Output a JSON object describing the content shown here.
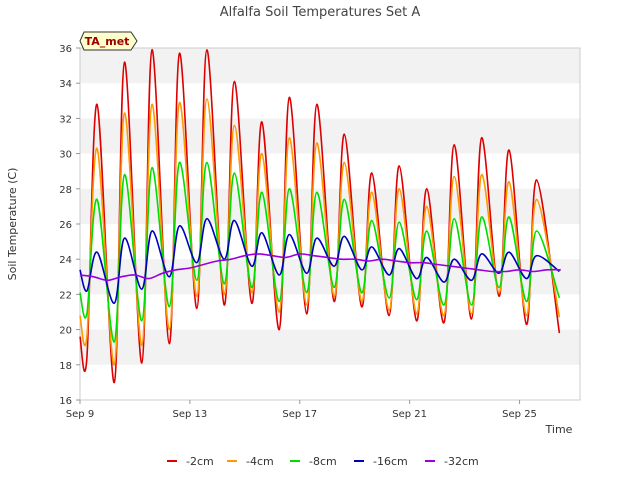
{
  "chart_data": {
    "type": "line",
    "title": "Alfalfa Soil Temperatures Set A",
    "badge": "TA_met",
    "xlabel": "Time",
    "ylabel": "Soil Temperature (C)",
    "ylim": [
      16,
      36
    ],
    "y_ticks": [
      16,
      18,
      20,
      22,
      24,
      26,
      28,
      30,
      32,
      34,
      36
    ],
    "x_ticks": [
      {
        "label": "Sep 9",
        "x": 0
      },
      {
        "label": "Sep 13",
        "x": 4
      },
      {
        "label": "Sep 17",
        "x": 8
      },
      {
        "label": "Sep 21",
        "x": 12
      },
      {
        "label": "Sep 25",
        "x": 16
      }
    ],
    "xlim_days_from_sep9": [
      0,
      18.2
    ],
    "x_unit": "days since Sep 9",
    "grid": "horizontal bands",
    "legend_position": "bottom",
    "daily_x": [
      0,
      1,
      2,
      3,
      4,
      5,
      6,
      7,
      8,
      9,
      10,
      11,
      12,
      13,
      14,
      15,
      16,
      17
    ],
    "series": [
      {
        "name": "-2cm",
        "color": "#dd0000",
        "daily_max": [
          32.8,
          35.2,
          35.9,
          35.7,
          35.9,
          34.1,
          31.8,
          33.2,
          32.8,
          31.1,
          28.9,
          29.3,
          28.0,
          30.5,
          30.9,
          30.2,
          28.5
        ],
        "daily_min": [
          18.4,
          17.0,
          18.1,
          19.2,
          21.2,
          21.4,
          21.5,
          20.0,
          20.9,
          21.6,
          21.3,
          20.8,
          20.5,
          20.4,
          20.6,
          21.9,
          20.3
        ],
        "end": 19.8
      },
      {
        "name": "-4cm",
        "color": "#ff9900",
        "daily_max": [
          30.3,
          32.3,
          32.8,
          32.9,
          33.1,
          31.6,
          30.0,
          30.9,
          30.6,
          29.5,
          27.8,
          28.0,
          27.0,
          28.7,
          28.8,
          28.4,
          27.4
        ],
        "daily_min": [
          19.6,
          18.0,
          19.1,
          20.0,
          21.9,
          22.0,
          22.1,
          21.0,
          21.4,
          21.9,
          21.6,
          21.1,
          20.9,
          20.8,
          20.9,
          22.1,
          20.8
        ],
        "end": 20.7
      },
      {
        "name": "-8cm",
        "color": "#00dd00",
        "daily_max": [
          27.4,
          28.8,
          29.2,
          29.5,
          29.5,
          28.9,
          27.8,
          28.0,
          27.8,
          27.4,
          26.2,
          26.1,
          25.6,
          26.3,
          26.4,
          26.4,
          25.6
        ],
        "daily_min": [
          20.9,
          19.3,
          20.5,
          21.3,
          22.8,
          22.6,
          22.4,
          21.6,
          22.1,
          22.4,
          22.1,
          21.8,
          21.7,
          21.4,
          21.4,
          22.4,
          21.6
        ],
        "end": 21.8
      },
      {
        "name": "-16cm",
        "color": "#0000bb",
        "daily_max": [
          24.4,
          25.2,
          25.6,
          25.9,
          26.3,
          26.2,
          25.5,
          25.4,
          25.2,
          25.3,
          24.7,
          24.6,
          24.1,
          24.0,
          24.3,
          24.4,
          24.2
        ],
        "daily_min": [
          22.2,
          21.5,
          22.3,
          23.0,
          23.8,
          24.0,
          23.6,
          23.1,
          23.2,
          23.6,
          23.4,
          23.1,
          22.9,
          22.7,
          22.8,
          23.2,
          22.9
        ],
        "end": 23.3
      },
      {
        "name": "-32cm",
        "color": "#9900dd",
        "points": [
          [
            0,
            23.1
          ],
          [
            0.5,
            23.0
          ],
          [
            1,
            22.8
          ],
          [
            1.5,
            23.0
          ],
          [
            2,
            23.1
          ],
          [
            2.5,
            22.9
          ],
          [
            3,
            23.2
          ],
          [
            3.5,
            23.4
          ],
          [
            4,
            23.5
          ],
          [
            4.5,
            23.7
          ],
          [
            5,
            23.9
          ],
          [
            5.5,
            24.0
          ],
          [
            6,
            24.2
          ],
          [
            6.5,
            24.3
          ],
          [
            7,
            24.2
          ],
          [
            7.5,
            24.1
          ],
          [
            8,
            24.3
          ],
          [
            8.5,
            24.2
          ],
          [
            9,
            24.1
          ],
          [
            9.5,
            24.0
          ],
          [
            10,
            24.0
          ],
          [
            10.5,
            23.9
          ],
          [
            11,
            24.0
          ],
          [
            11.5,
            23.9
          ],
          [
            12,
            23.8
          ],
          [
            12.5,
            23.8
          ],
          [
            13,
            23.7
          ],
          [
            13.5,
            23.6
          ],
          [
            14,
            23.5
          ],
          [
            14.5,
            23.4
          ],
          [
            15,
            23.3
          ],
          [
            15.5,
            23.3
          ],
          [
            16,
            23.4
          ],
          [
            16.5,
            23.3
          ],
          [
            17,
            23.4
          ],
          [
            17.5,
            23.4
          ]
        ]
      }
    ]
  }
}
